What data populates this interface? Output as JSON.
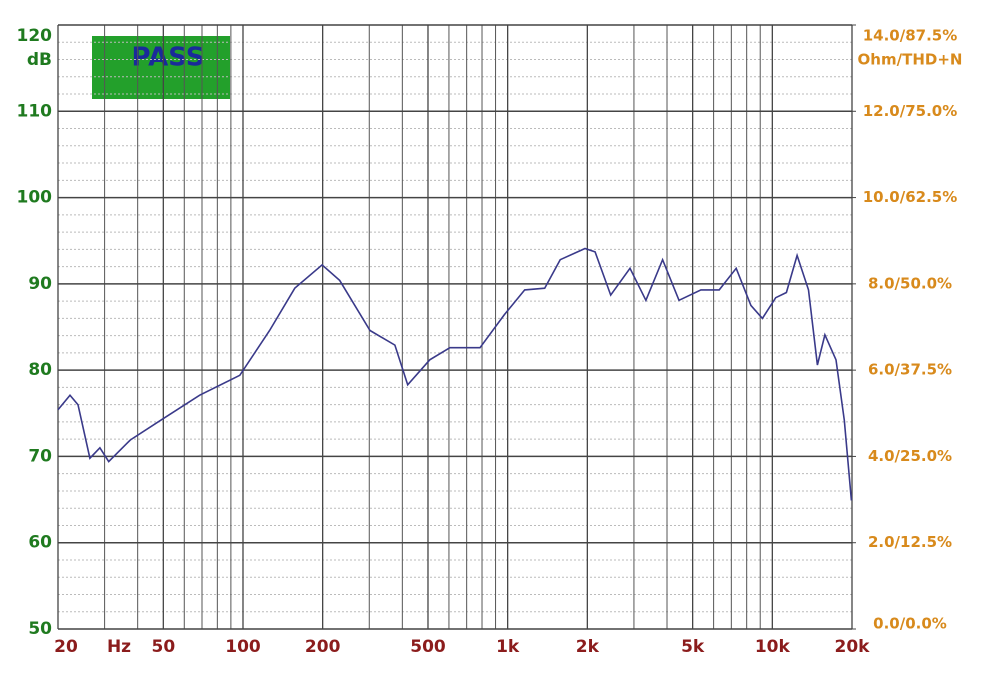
{
  "chart_data": {
    "type": "line",
    "annotation": "PASS",
    "y_label": "dB",
    "y2_label": "Ohm/THD+N",
    "x_label": "Hz",
    "log_x": true,
    "grid": true,
    "xlim": [
      20,
      20000
    ],
    "ylim": [
      50,
      120
    ],
    "y2lim": [
      0,
      14
    ],
    "xticks": [
      20,
      50,
      100,
      200,
      500,
      {
        "value": 1000,
        "label": "1k"
      },
      {
        "value": 2000,
        "label": "2k"
      },
      {
        "value": 5000,
        "label": "5k"
      },
      {
        "value": 10000,
        "label": "10k"
      },
      {
        "value": 20000,
        "label": "20k"
      }
    ],
    "x_minor_grid": [
      30,
      40,
      60,
      70,
      80,
      90,
      300,
      400,
      600,
      700,
      800,
      900,
      3000,
      4000,
      6000,
      7000,
      8000,
      9000
    ],
    "yticks": [
      50,
      60,
      70,
      80,
      90,
      100,
      110,
      120
    ],
    "y_minor_grid": [
      52,
      54,
      56,
      58,
      62,
      64,
      66,
      68,
      72,
      74,
      76,
      78,
      82,
      84,
      86,
      88,
      92,
      94,
      96,
      98,
      102,
      104,
      106,
      108,
      112,
      114,
      116,
      118
    ],
    "y2ticks": [
      {
        "value": 0,
        "label": "0.0/0.0%"
      },
      {
        "value": 2,
        "label": "2.0/12.5%"
      },
      {
        "value": 4,
        "label": "4.0/25.0%"
      },
      {
        "value": 6,
        "label": "6.0/37.5%"
      },
      {
        "value": 8,
        "label": "8.0/50.0%"
      },
      {
        "value": 10,
        "label": "10.0/62.5%"
      },
      {
        "value": 12,
        "label": "12.0/75.0%"
      },
      {
        "value": 14,
        "label": "14.0/87.5%"
      }
    ],
    "series": [
      {
        "color": "#3a3a8a",
        "x": [
          20,
          22.2,
          23.8,
          26.4,
          28.8,
          31.1,
          37.5,
          48.9,
          68.6,
          97.3,
          126,
          157,
          199,
          232,
          302,
          375,
          419,
          508,
          605,
          786,
          970,
          1160,
          1380,
          1580,
          1960,
          2140,
          2450,
          2900,
          3330,
          3850,
          4440,
          5370,
          6300,
          7300,
          8300,
          9170,
          10300,
          11300,
          12400,
          13700,
          14800,
          15800,
          17400,
          18700,
          19900
        ],
        "values": [
          75.4,
          77.1,
          76.0,
          69.8,
          71.0,
          69.4,
          71.9,
          74.2,
          77.1,
          79.4,
          84.6,
          89.5,
          92.2,
          90.4,
          84.6,
          82.9,
          78.3,
          81.2,
          82.6,
          82.6,
          86.4,
          89.3,
          89.5,
          92.8,
          94.1,
          93.7,
          88.7,
          91.8,
          88.1,
          92.8,
          88.1,
          89.3,
          89.3,
          91.8,
          87.5,
          86.0,
          88.4,
          89.0,
          93.3,
          89.3,
          80.6,
          84.1,
          81.2,
          74.2,
          64.9
        ]
      }
    ]
  }
}
